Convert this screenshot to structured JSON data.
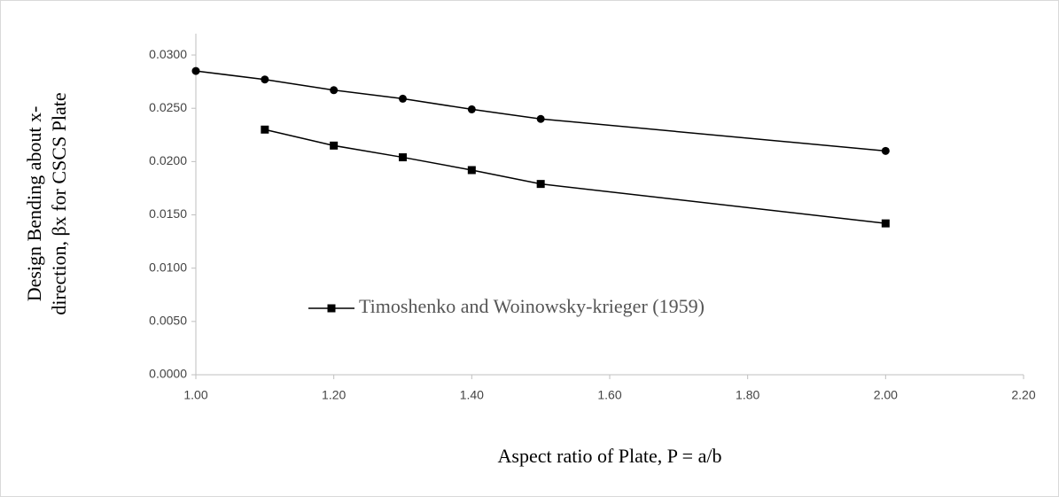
{
  "chart_data": {
    "type": "line",
    "x_label": "Aspect ratio of Plate, P = a/b",
    "y_label": [
      "Design Bending  about x-",
      "direction, βx for CSCS Plate"
    ],
    "series": [
      {
        "color": "#000000",
        "marker": "circle",
        "x": [
          1.0,
          1.1,
          1.2,
          1.3,
          1.4,
          1.5,
          2.0
        ],
        "values": [
          0.0285,
          0.0277,
          0.0267,
          0.0259,
          0.0249,
          0.024,
          0.021
        ]
      },
      {
        "name": "Timoshenko and Woinowsky-krieger (1959)",
        "color": "#000000",
        "marker": "square",
        "x": [
          1.1,
          1.2,
          1.3,
          1.4,
          1.5,
          2.0
        ],
        "values": [
          0.023,
          0.0215,
          0.0204,
          0.0192,
          0.0179,
          0.0142
        ]
      }
    ],
    "xlim": [
      1.0,
      2.2
    ],
    "xticks": [
      {
        "value": 1.0,
        "label": "1.00"
      },
      {
        "value": 1.2,
        "label": "1.20"
      },
      {
        "value": 1.4,
        "label": "1.40"
      },
      {
        "value": 1.6,
        "label": "1.60"
      },
      {
        "value": 1.8,
        "label": "1.80"
      },
      {
        "value": 2.0,
        "label": "2.00"
      },
      {
        "value": 2.2,
        "label": "2.20"
      }
    ],
    "ylim": [
      0,
      0.032
    ],
    "yticks": [
      {
        "value": 0,
        "label": "0.0000"
      },
      {
        "value": 0.005,
        "label": "0.0050"
      },
      {
        "value": 0.01,
        "label": "0.0100"
      },
      {
        "value": 0.015,
        "label": "0.0150"
      },
      {
        "value": 0.02,
        "label": "0.0200"
      },
      {
        "value": 0.025,
        "label": "0.0250"
      },
      {
        "value": 0.03,
        "label": "0.0300"
      }
    ],
    "grid": false,
    "legend": "bottom-left"
  }
}
